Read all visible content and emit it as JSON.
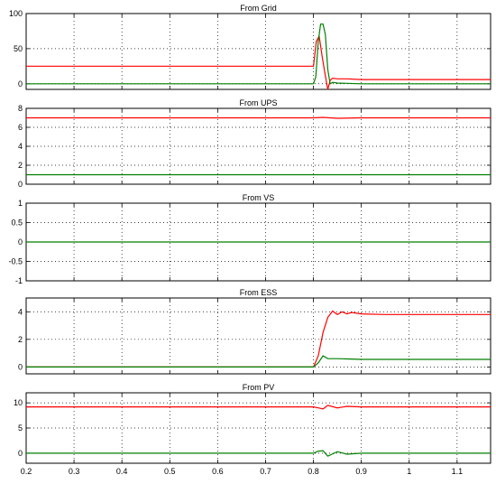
{
  "chart_data": [
    {
      "type": "line",
      "title": "From Grid",
      "xlim": [
        0.2,
        1.17
      ],
      "ylim": [
        -8,
        100
      ],
      "yticks": [
        0,
        50,
        100
      ],
      "ytick_labels": [
        "0",
        "50",
        "100"
      ],
      "series": [
        {
          "color": "#ff0000",
          "x": [
            0.2,
            0.8,
            0.806,
            0.812,
            0.818,
            0.824,
            0.83,
            0.835,
            0.84,
            0.85,
            0.87,
            0.9,
            1.0,
            1.17
          ],
          "y": [
            25,
            25,
            60,
            68,
            40,
            15,
            -8,
            5,
            8,
            7,
            7,
            6,
            6,
            6
          ]
        },
        {
          "color": "#008000",
          "x": [
            0.2,
            0.8,
            0.805,
            0.81,
            0.815,
            0.82,
            0.825,
            0.83,
            0.835,
            0.84,
            0.85,
            0.9,
            1.17
          ],
          "y": [
            0,
            0,
            10,
            60,
            85,
            85,
            70,
            20,
            0,
            2,
            1,
            0,
            0
          ]
        }
      ]
    },
    {
      "type": "line",
      "title": "From UPS",
      "xlim": [
        0.2,
        1.17
      ],
      "ylim": [
        0,
        8
      ],
      "yticks": [
        0,
        2,
        4,
        6,
        8
      ],
      "ytick_labels": [
        "0",
        "2",
        "4",
        "6",
        "8"
      ],
      "series": [
        {
          "color": "#ff0000",
          "x": [
            0.2,
            0.8,
            0.82,
            0.85,
            0.9,
            1.17
          ],
          "y": [
            7,
            7,
            7.05,
            6.95,
            7,
            7
          ]
        },
        {
          "color": "#008000",
          "x": [
            0.2,
            1.17
          ],
          "y": [
            1,
            1
          ]
        }
      ]
    },
    {
      "type": "line",
      "title": "From VS",
      "xlim": [
        0.2,
        1.17
      ],
      "ylim": [
        -1,
        1
      ],
      "yticks": [
        -1,
        -0.5,
        0,
        0.5,
        1
      ],
      "ytick_labels": [
        "-1",
        "-0.5",
        "0",
        "0.5",
        "1"
      ],
      "series": [
        {
          "color": "#008000",
          "x": [
            0.2,
            1.17
          ],
          "y": [
            0,
            0
          ]
        }
      ]
    },
    {
      "type": "line",
      "title": "From ESS",
      "xlim": [
        0.2,
        1.17
      ],
      "ylim": [
        -0.5,
        5
      ],
      "yticks": [
        0,
        2,
        4
      ],
      "ytick_labels": [
        "0",
        "2",
        "4"
      ],
      "series": [
        {
          "color": "#ff0000",
          "x": [
            0.2,
            0.8,
            0.81,
            0.82,
            0.83,
            0.84,
            0.85,
            0.86,
            0.87,
            0.88,
            0.9,
            0.95,
            1.0,
            1.17
          ],
          "y": [
            0,
            0,
            0.8,
            2.5,
            3.6,
            4.05,
            3.8,
            4.0,
            3.85,
            3.95,
            3.85,
            3.8,
            3.8,
            3.8
          ]
        },
        {
          "color": "#008000",
          "x": [
            0.2,
            0.8,
            0.81,
            0.82,
            0.83,
            0.85,
            0.9,
            1.17
          ],
          "y": [
            0,
            0,
            0.3,
            0.8,
            0.6,
            0.6,
            0.55,
            0.55
          ]
        }
      ]
    },
    {
      "type": "line",
      "title": "From PV",
      "xlim": [
        0.2,
        1.17
      ],
      "ylim": [
        -2,
        12
      ],
      "yticks": [
        0,
        5,
        10
      ],
      "ytick_labels": [
        "0",
        "5",
        "10"
      ],
      "xticks": [
        0.2,
        0.3,
        0.4,
        0.5,
        0.6,
        0.7,
        0.8,
        0.9,
        1.0,
        1.1
      ],
      "xtick_labels": [
        "0.2",
        "0.3",
        "0.4",
        "0.5",
        "0.6",
        "0.7",
        "0.8",
        "0.9",
        "1",
        "1.1"
      ],
      "series": [
        {
          "color": "#ff0000",
          "x": [
            0.2,
            0.8,
            0.81,
            0.82,
            0.83,
            0.85,
            0.87,
            0.9,
            1.17
          ],
          "y": [
            9.2,
            9.2,
            9.0,
            8.8,
            9.5,
            9.0,
            9.3,
            9.2,
            9.2
          ]
        },
        {
          "color": "#008000",
          "x": [
            0.2,
            0.8,
            0.81,
            0.82,
            0.83,
            0.85,
            0.87,
            0.9,
            1.17
          ],
          "y": [
            0,
            0,
            0.4,
            0.5,
            -0.6,
            0.3,
            -0.2,
            0,
            0
          ]
        }
      ]
    }
  ]
}
